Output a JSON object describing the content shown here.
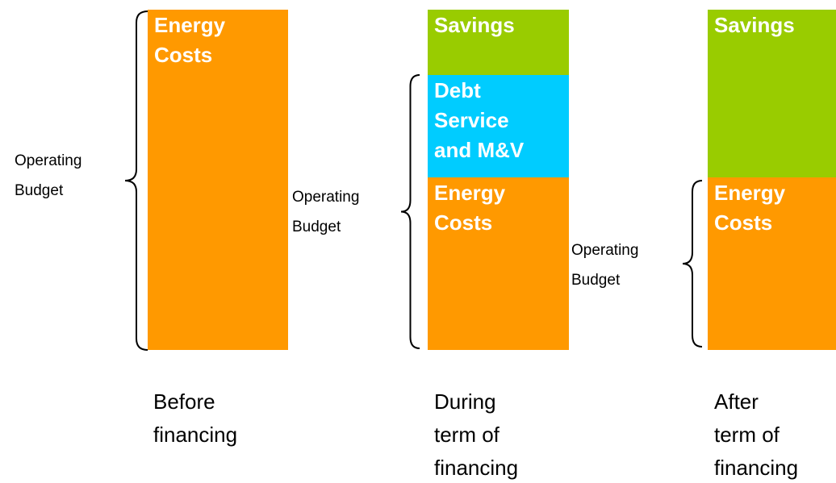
{
  "columns": [
    {
      "caption": [
        "Before",
        "financing"
      ],
      "budget_label": [
        "Operating",
        "Budget"
      ],
      "segments": [
        {
          "label": [
            "Energy",
            "Costs"
          ]
        }
      ]
    },
    {
      "caption": [
        "During",
        "term of",
        "financing"
      ],
      "budget_label": [
        "Operating",
        "Budget"
      ],
      "segments": [
        {
          "label": [
            "Savings"
          ]
        },
        {
          "label": [
            "Debt",
            "Service",
            "and M&V"
          ]
        },
        {
          "label": [
            "Energy",
            "Costs"
          ]
        }
      ]
    },
    {
      "caption": [
        "After",
        "term of",
        "financing"
      ],
      "budget_label": [
        "Operating",
        "Budget"
      ],
      "segments": [
        {
          "label": [
            "Savings"
          ]
        },
        {
          "label": [
            "Energy",
            "Costs"
          ]
        }
      ]
    }
  ]
}
